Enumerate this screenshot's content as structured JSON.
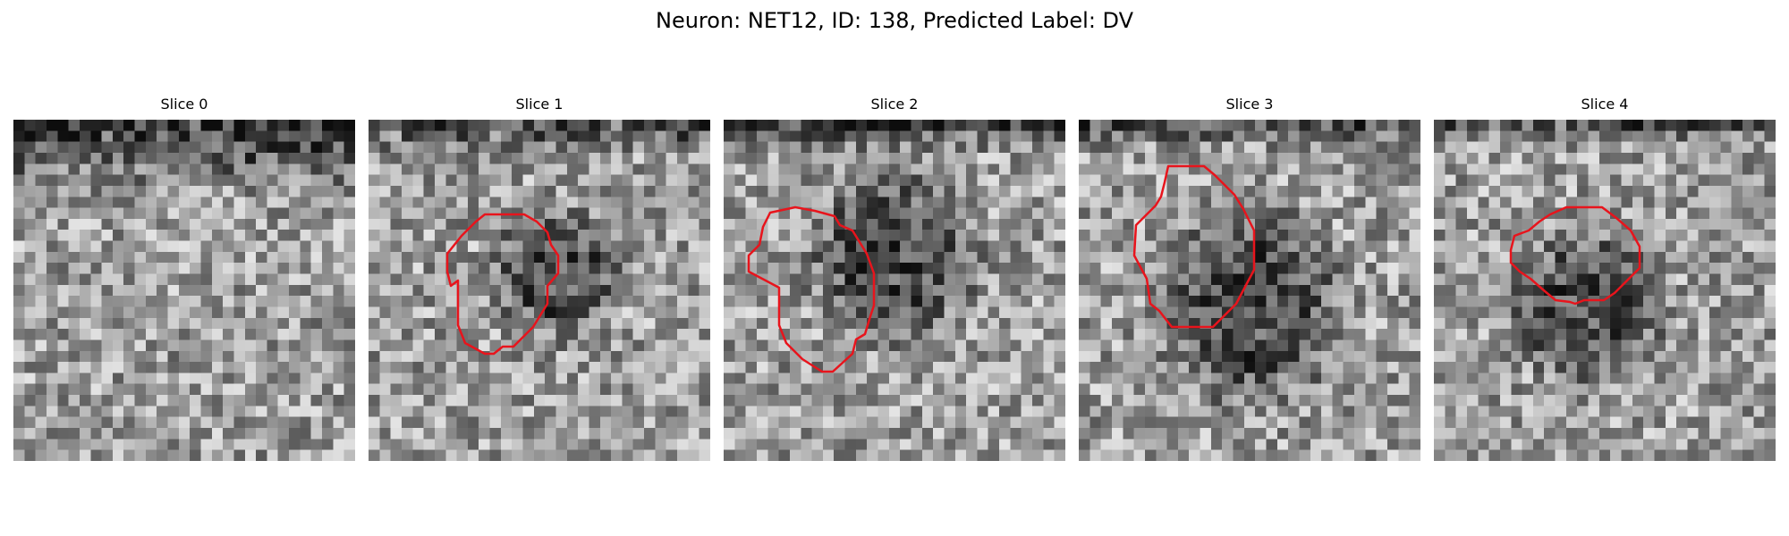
{
  "figure": {
    "title": "Neuron: NET12, ID: 138, Predicted Label: DV"
  },
  "contour_color": "#e8141c",
  "panels": [
    {
      "title": "Slice 0",
      "has_contour": false,
      "dark_band": "top",
      "blob": "none"
    },
    {
      "title": "Slice 1",
      "has_contour": true,
      "dark_band": "top",
      "blob": "dark-cell-center"
    },
    {
      "title": "Slice 2",
      "has_contour": true,
      "dark_band": "top",
      "blob": "dark-cell-center"
    },
    {
      "title": "Slice 3",
      "has_contour": true,
      "dark_band": "top",
      "blob": "dark-cell-center"
    },
    {
      "title": "Slice 4",
      "has_contour": true,
      "dark_band": "top",
      "blob": "dark-cell-center"
    }
  ]
}
